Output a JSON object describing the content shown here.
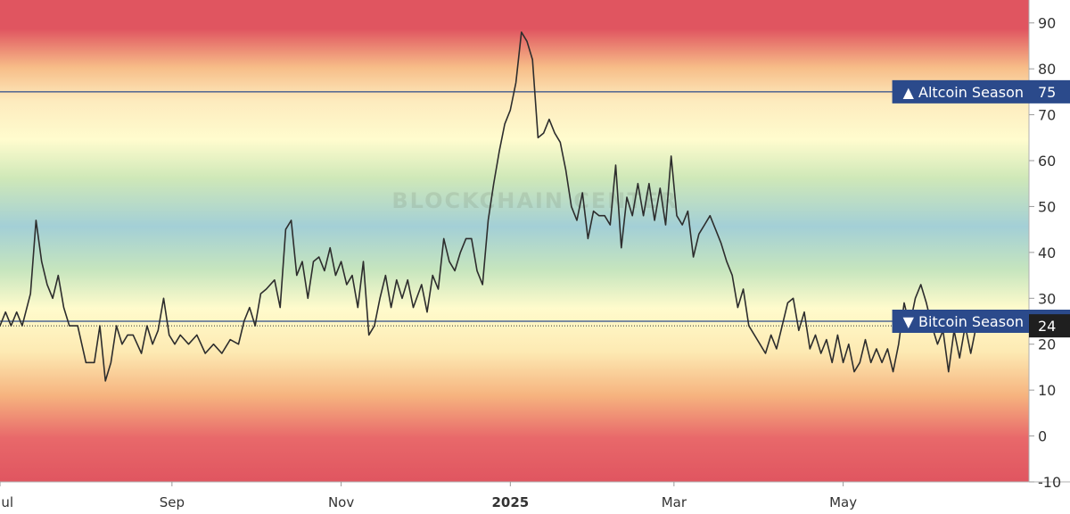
{
  "chart_data": {
    "type": "line",
    "watermark": "BLOCKCHAIN CENTER",
    "ylim": [
      -10,
      95
    ],
    "yticks": [
      -10,
      0,
      10,
      20,
      30,
      40,
      50,
      60,
      70,
      80,
      90
    ],
    "x_range": [
      "2024-07-01",
      "2025-07-07"
    ],
    "x_ticks": [
      {
        "date": "2024-07-01",
        "label": "Jul",
        "bold": false
      },
      {
        "date": "2024-09-01",
        "label": "Sep",
        "bold": false
      },
      {
        "date": "2024-11-01",
        "label": "Nov",
        "bold": false
      },
      {
        "date": "2025-01-01",
        "label": "2025",
        "bold": true
      },
      {
        "date": "2025-03-01",
        "label": "Mar",
        "bold": false
      },
      {
        "date": "2025-05-01",
        "label": "May",
        "bold": false
      }
    ],
    "levels": [
      {
        "name": "Altcoin Season",
        "symbol": "▲",
        "value": 75,
        "value_label": "75",
        "color": "#2b4a8b"
      },
      {
        "name": "Bitcoin Season",
        "symbol": "▼",
        "value": 25,
        "value_label": "25",
        "color": "#2b4a8b"
      }
    ],
    "current": {
      "value": 24,
      "label": "24",
      "color": "#1f1f1f"
    },
    "series": [
      {
        "color": "#2d2d2d",
        "points": [
          [
            "2024-06-28",
            26
          ],
          [
            "2024-07-01",
            24
          ],
          [
            "2024-07-03",
            27
          ],
          [
            "2024-07-05",
            24
          ],
          [
            "2024-07-07",
            27
          ],
          [
            "2024-07-09",
            24
          ],
          [
            "2024-07-12",
            31
          ],
          [
            "2024-07-14",
            47
          ],
          [
            "2024-07-16",
            38
          ],
          [
            "2024-07-18",
            33
          ],
          [
            "2024-07-20",
            30
          ],
          [
            "2024-07-22",
            35
          ],
          [
            "2024-07-24",
            28
          ],
          [
            "2024-07-26",
            24
          ],
          [
            "2024-07-29",
            24
          ],
          [
            "2024-08-01",
            16
          ],
          [
            "2024-08-04",
            16
          ],
          [
            "2024-08-06",
            24
          ],
          [
            "2024-08-08",
            12
          ],
          [
            "2024-08-10",
            16
          ],
          [
            "2024-08-12",
            24
          ],
          [
            "2024-08-14",
            20
          ],
          [
            "2024-08-16",
            22
          ],
          [
            "2024-08-18",
            22
          ],
          [
            "2024-08-21",
            18
          ],
          [
            "2024-08-23",
            24
          ],
          [
            "2024-08-25",
            20
          ],
          [
            "2024-08-27",
            23
          ],
          [
            "2024-08-29",
            30
          ],
          [
            "2024-08-31",
            22
          ],
          [
            "2024-09-02",
            20
          ],
          [
            "2024-09-04",
            22
          ],
          [
            "2024-09-07",
            20
          ],
          [
            "2024-09-10",
            22
          ],
          [
            "2024-09-13",
            18
          ],
          [
            "2024-09-16",
            20
          ],
          [
            "2024-09-19",
            18
          ],
          [
            "2024-09-22",
            21
          ],
          [
            "2024-09-25",
            20
          ],
          [
            "2024-09-27",
            25
          ],
          [
            "2024-09-29",
            28
          ],
          [
            "2024-10-01",
            24
          ],
          [
            "2024-10-03",
            31
          ],
          [
            "2024-10-05",
            32
          ],
          [
            "2024-10-08",
            34
          ],
          [
            "2024-10-10",
            28
          ],
          [
            "2024-10-12",
            45
          ],
          [
            "2024-10-14",
            47
          ],
          [
            "2024-10-16",
            35
          ],
          [
            "2024-10-18",
            38
          ],
          [
            "2024-10-20",
            30
          ],
          [
            "2024-10-22",
            38
          ],
          [
            "2024-10-24",
            39
          ],
          [
            "2024-10-26",
            36
          ],
          [
            "2024-10-28",
            41
          ],
          [
            "2024-10-30",
            35
          ],
          [
            "2024-11-01",
            38
          ],
          [
            "2024-11-03",
            33
          ],
          [
            "2024-11-05",
            35
          ],
          [
            "2024-11-07",
            28
          ],
          [
            "2024-11-09",
            38
          ],
          [
            "2024-11-11",
            22
          ],
          [
            "2024-11-13",
            24
          ],
          [
            "2024-11-15",
            30
          ],
          [
            "2024-11-17",
            35
          ],
          [
            "2024-11-19",
            28
          ],
          [
            "2024-11-21",
            34
          ],
          [
            "2024-11-23",
            30
          ],
          [
            "2024-11-25",
            34
          ],
          [
            "2024-11-27",
            28
          ],
          [
            "2024-11-30",
            33
          ],
          [
            "2024-12-02",
            27
          ],
          [
            "2024-12-04",
            35
          ],
          [
            "2024-12-06",
            32
          ],
          [
            "2024-12-08",
            43
          ],
          [
            "2024-12-10",
            38
          ],
          [
            "2024-12-12",
            36
          ],
          [
            "2024-12-14",
            40
          ],
          [
            "2024-12-16",
            43
          ],
          [
            "2024-12-18",
            43
          ],
          [
            "2024-12-20",
            36
          ],
          [
            "2024-12-22",
            33
          ],
          [
            "2024-12-24",
            47
          ],
          [
            "2024-12-26",
            55
          ],
          [
            "2024-12-28",
            62
          ],
          [
            "2024-12-30",
            68
          ],
          [
            "2025-01-01",
            71
          ],
          [
            "2025-01-03",
            77
          ],
          [
            "2025-01-05",
            88
          ],
          [
            "2025-01-07",
            86
          ],
          [
            "2025-01-09",
            82
          ],
          [
            "2025-01-11",
            65
          ],
          [
            "2025-01-13",
            66
          ],
          [
            "2025-01-15",
            69
          ],
          [
            "2025-01-17",
            66
          ],
          [
            "2025-01-19",
            64
          ],
          [
            "2025-01-21",
            58
          ],
          [
            "2025-01-23",
            50
          ],
          [
            "2025-01-25",
            47
          ],
          [
            "2025-01-27",
            53
          ],
          [
            "2025-01-29",
            43
          ],
          [
            "2025-01-31",
            49
          ],
          [
            "2025-02-02",
            48
          ],
          [
            "2025-02-04",
            48
          ],
          [
            "2025-02-06",
            46
          ],
          [
            "2025-02-08",
            59
          ],
          [
            "2025-02-10",
            41
          ],
          [
            "2025-02-12",
            52
          ],
          [
            "2025-02-14",
            48
          ],
          [
            "2025-02-16",
            55
          ],
          [
            "2025-02-18",
            48
          ],
          [
            "2025-02-20",
            55
          ],
          [
            "2025-02-22",
            47
          ],
          [
            "2025-02-24",
            54
          ],
          [
            "2025-02-26",
            46
          ],
          [
            "2025-02-28",
            61
          ],
          [
            "2025-03-02",
            48
          ],
          [
            "2025-03-04",
            46
          ],
          [
            "2025-03-06",
            49
          ],
          [
            "2025-03-08",
            39
          ],
          [
            "2025-03-10",
            44
          ],
          [
            "2025-03-12",
            46
          ],
          [
            "2025-03-14",
            48
          ],
          [
            "2025-03-16",
            45
          ],
          [
            "2025-03-18",
            42
          ],
          [
            "2025-03-20",
            38
          ],
          [
            "2025-03-22",
            35
          ],
          [
            "2025-03-24",
            28
          ],
          [
            "2025-03-26",
            32
          ],
          [
            "2025-03-28",
            24
          ],
          [
            "2025-03-30",
            22
          ],
          [
            "2025-04-01",
            20
          ],
          [
            "2025-04-03",
            18
          ],
          [
            "2025-04-05",
            22
          ],
          [
            "2025-04-07",
            19
          ],
          [
            "2025-04-09",
            24
          ],
          [
            "2025-04-11",
            29
          ],
          [
            "2025-04-13",
            30
          ],
          [
            "2025-04-15",
            23
          ],
          [
            "2025-04-17",
            27
          ],
          [
            "2025-04-19",
            19
          ],
          [
            "2025-04-21",
            22
          ],
          [
            "2025-04-23",
            18
          ],
          [
            "2025-04-25",
            21
          ],
          [
            "2025-04-27",
            16
          ],
          [
            "2025-04-29",
            22
          ],
          [
            "2025-05-01",
            16
          ],
          [
            "2025-05-03",
            20
          ],
          [
            "2025-05-05",
            14
          ],
          [
            "2025-05-07",
            16
          ],
          [
            "2025-05-09",
            21
          ],
          [
            "2025-05-11",
            16
          ],
          [
            "2025-05-13",
            19
          ],
          [
            "2025-05-15",
            16
          ],
          [
            "2025-05-17",
            19
          ],
          [
            "2025-05-19",
            14
          ],
          [
            "2025-05-21",
            20
          ],
          [
            "2025-05-23",
            29
          ],
          [
            "2025-05-25",
            24
          ],
          [
            "2025-05-27",
            30
          ],
          [
            "2025-05-29",
            33
          ],
          [
            "2025-05-31",
            29
          ],
          [
            "2025-06-02",
            24
          ],
          [
            "2025-06-04",
            20
          ],
          [
            "2025-06-06",
            23
          ],
          [
            "2025-06-08",
            14
          ],
          [
            "2025-06-10",
            23
          ],
          [
            "2025-06-12",
            17
          ],
          [
            "2025-06-14",
            24
          ],
          [
            "2025-06-16",
            18
          ],
          [
            "2025-06-18",
            24
          ]
        ]
      }
    ]
  }
}
